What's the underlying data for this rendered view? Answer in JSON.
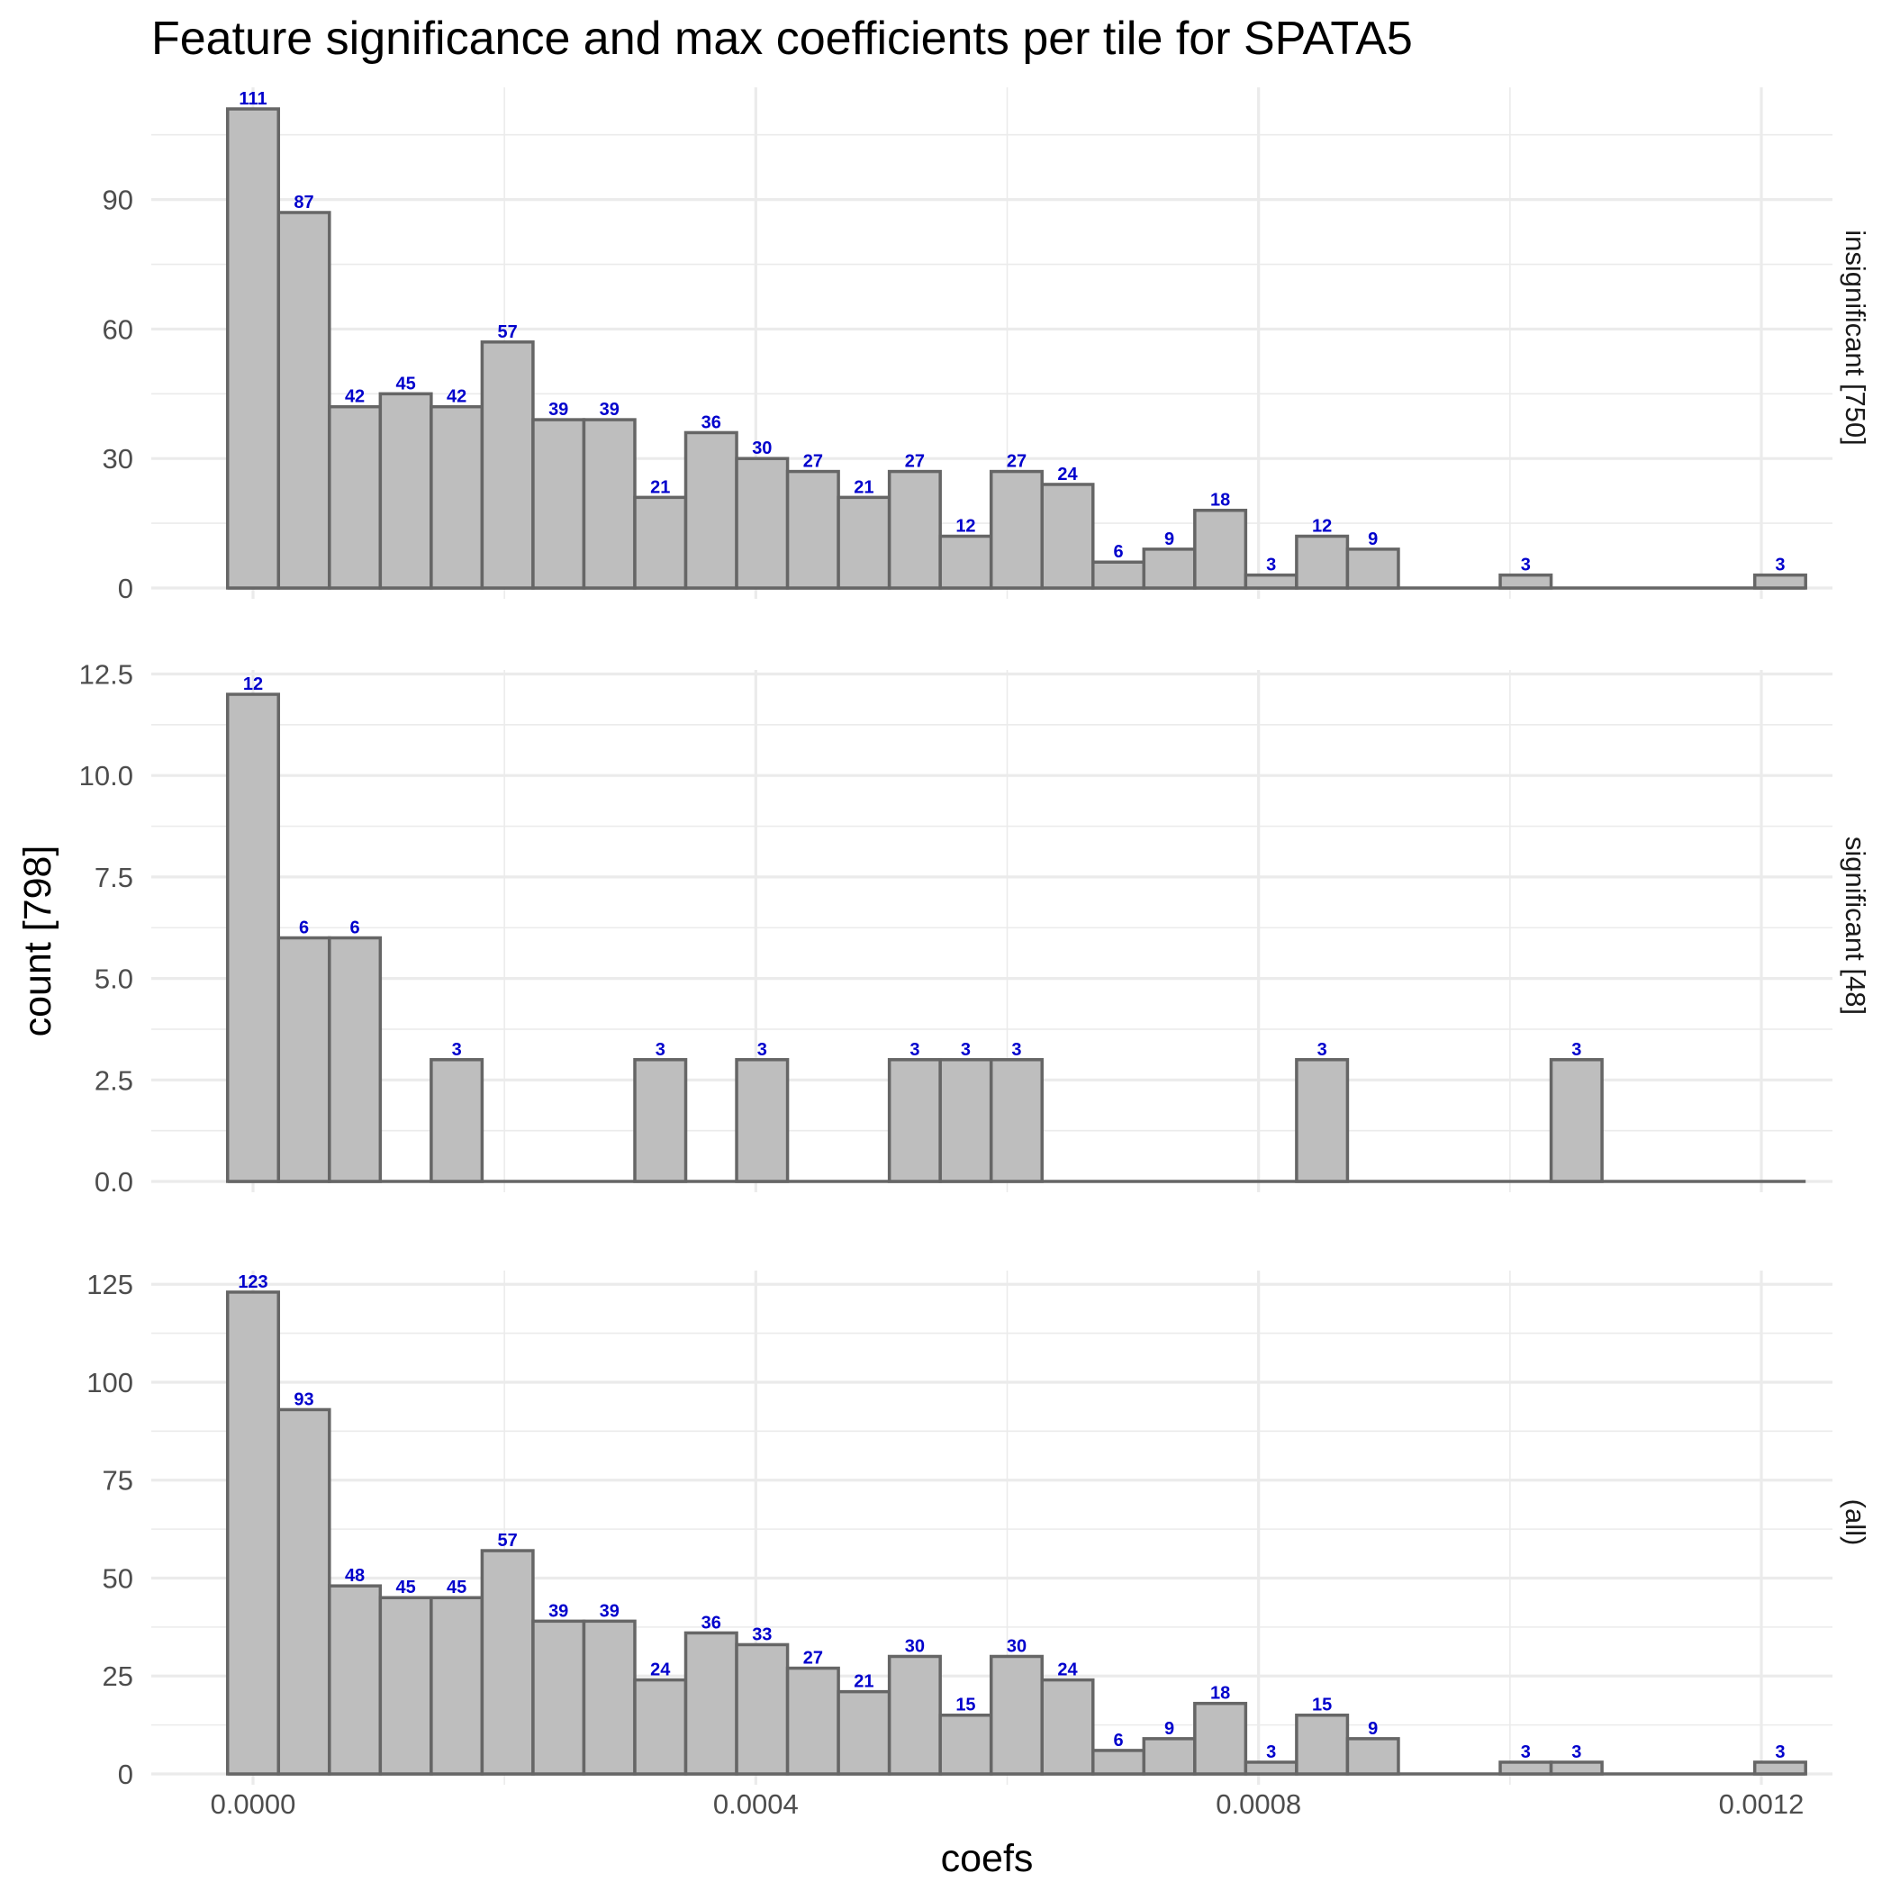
{
  "chart_data": {
    "type": "bar",
    "title": "Feature significance and max coefficients per tile for SPATA5",
    "xlabel": "coefs",
    "ylabel": "count [798]",
    "bin_width": 4.05e-05,
    "x_first_bin_center": 0.0,
    "x_ticks": [
      {
        "value": 0.0,
        "label": "0.0000"
      },
      {
        "value": 0.0004,
        "label": "0.0004"
      },
      {
        "value": 0.0008,
        "label": "0.0008"
      },
      {
        "value": 0.0012,
        "label": "0.0012"
      }
    ],
    "panels": [
      {
        "name": "insignificant [750]",
        "ylim": [
          0,
          116
        ],
        "y_ticks": [
          {
            "value": 0,
            "label": "0"
          },
          {
            "value": 30,
            "label": "30"
          },
          {
            "value": 60,
            "label": "60"
          },
          {
            "value": 90,
            "label": "90"
          }
        ],
        "values": [
          111,
          87,
          42,
          45,
          42,
          57,
          39,
          39,
          21,
          36,
          30,
          27,
          21,
          27,
          12,
          27,
          24,
          6,
          9,
          18,
          3,
          12,
          9,
          0,
          0,
          3,
          0,
          0,
          0,
          0,
          3
        ]
      },
      {
        "name": "significant [48]",
        "ylim": [
          0,
          12.6
        ],
        "y_ticks": [
          {
            "value": 0,
            "label": "0.0"
          },
          {
            "value": 2.5,
            "label": "2.5"
          },
          {
            "value": 5,
            "label": "5.0"
          },
          {
            "value": 7.5,
            "label": "7.5"
          },
          {
            "value": 10,
            "label": "10.0"
          },
          {
            "value": 12.5,
            "label": "12.5"
          }
        ],
        "values": [
          12,
          6,
          6,
          0,
          3,
          0,
          0,
          0,
          3,
          0,
          3,
          0,
          0,
          3,
          3,
          3,
          0,
          0,
          0,
          0,
          0,
          3,
          0,
          0,
          0,
          0,
          3,
          0,
          0,
          0,
          0
        ]
      },
      {
        "name": "(all)",
        "ylim": [
          0,
          128.5
        ],
        "y_ticks": [
          {
            "value": 0,
            "label": "0"
          },
          {
            "value": 25,
            "label": "25"
          },
          {
            "value": 50,
            "label": "50"
          },
          {
            "value": 75,
            "label": "75"
          },
          {
            "value": 100,
            "label": "100"
          },
          {
            "value": 125,
            "label": "125"
          }
        ],
        "values": [
          123,
          93,
          48,
          45,
          45,
          57,
          39,
          39,
          24,
          36,
          33,
          27,
          21,
          30,
          15,
          30,
          24,
          6,
          9,
          18,
          3,
          15,
          9,
          0,
          0,
          3,
          3,
          0,
          0,
          0,
          3
        ]
      }
    ]
  }
}
